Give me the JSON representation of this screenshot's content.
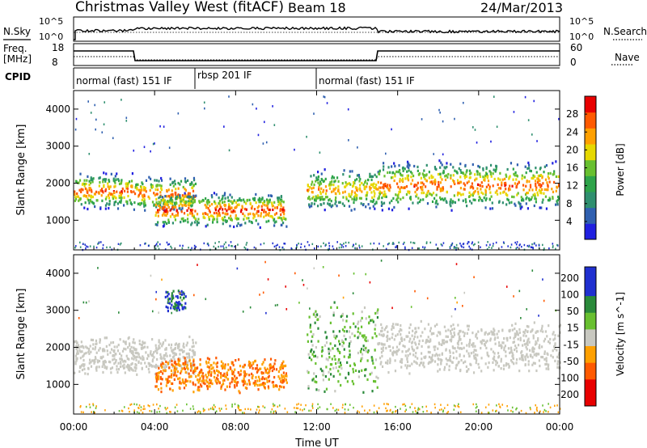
{
  "header": {
    "station": "Christmas Valley West (fitACF)",
    "beam": "Beam 18",
    "date": "24/Mar/2013"
  },
  "top_strips": {
    "nsky_label": "N.Sky",
    "nsearch_label": "N.Search",
    "nsky_ticks": [
      "10^5",
      "10^0"
    ],
    "nsearch_ticks": [
      "10^5",
      "10^0"
    ],
    "freq_label": "Freq.",
    "freq_unit": "[MHz]",
    "freq_ticks": [
      "18",
      "8"
    ],
    "nave_label": "Nave",
    "nave_ticks": [
      "60",
      "0"
    ],
    "cpid_label": "CPID"
  },
  "cpid_segments": [
    {
      "label": "normal (fast) 151 IF",
      "start": 0,
      "end": 6
    },
    {
      "label": "rbsp 201 IF",
      "start": 6,
      "end": 12
    },
    {
      "label": "normal (fast) 151 IF",
      "start": 12,
      "end": 24
    }
  ],
  "chart_data": [
    {
      "type": "heatmap",
      "title": "Power",
      "ylabel": "Slant Range [km]",
      "xlabel": "Time UT",
      "xlim": [
        0,
        24
      ],
      "ylim": [
        200,
        4500
      ],
      "x_ticks": [
        "00:00",
        "04:00",
        "08:00",
        "12:00",
        "16:00",
        "20:00",
        "00:00"
      ],
      "y_ticks": [
        1000,
        2000,
        3000,
        4000
      ],
      "colorbar": {
        "label": "Power [dB]",
        "ticks": [
          4,
          8,
          12,
          16,
          20,
          24,
          28
        ],
        "range": [
          0,
          32
        ]
      },
      "features": [
        {
          "t_start": 0.0,
          "t_end": 2.9,
          "range_low_km": 1350,
          "range_high_km": 2300,
          "peak_db": 28
        },
        {
          "t_start": 2.9,
          "t_end": 6.0,
          "range_low_km": 1300,
          "range_high_km": 2200,
          "peak_db": 28
        },
        {
          "t_start": 4.0,
          "t_end": 10.5,
          "range_low_km": 850,
          "range_high_km": 1750,
          "peak_db": 30
        },
        {
          "t_start": 11.5,
          "t_end": 15.0,
          "range_low_km": 1300,
          "range_high_km": 2400,
          "peak_db": 24
        },
        {
          "t_start": 15.0,
          "t_end": 24.0,
          "range_low_km": 1350,
          "range_high_km": 2600,
          "peak_db": 28
        }
      ]
    },
    {
      "type": "heatmap",
      "title": "Velocity",
      "ylabel": "Slant Range [km]",
      "xlabel": "Time UT",
      "xlim": [
        0,
        24
      ],
      "ylim": [
        200,
        4500
      ],
      "x_ticks": [
        "00:00",
        "04:00",
        "08:00",
        "12:00",
        "16:00",
        "20:00",
        "00:00"
      ],
      "y_ticks": [
        1000,
        2000,
        3000,
        4000
      ],
      "colorbar": {
        "label": "Velocity [m s^-1]",
        "ticks": [
          200,
          100,
          50,
          15,
          -15,
          -50,
          -100,
          -200
        ],
        "range": [
          -250,
          250
        ]
      },
      "features": [
        {
          "t_start": 0.0,
          "t_end": 6.0,
          "range_low_km": 1300,
          "range_high_km": 2300,
          "velocity": 0,
          "note": "ground scatter"
        },
        {
          "t_start": 4.0,
          "t_end": 10.5,
          "range_low_km": 850,
          "range_high_km": 1750,
          "velocity": -60
        },
        {
          "t_start": 4.5,
          "t_end": 5.5,
          "range_low_km": 3000,
          "range_high_km": 3600,
          "velocity": 150
        },
        {
          "t_start": 11.5,
          "t_end": 15.0,
          "range_low_km": 800,
          "range_high_km": 3200,
          "velocity": 40
        },
        {
          "t_start": 15.0,
          "t_end": 24.0,
          "range_low_km": 1350,
          "range_high_km": 2700,
          "velocity": 0,
          "note": "ground scatter"
        }
      ]
    }
  ],
  "colors": {
    "power_scale": [
      "#2020e0",
      "#3060b0",
      "#2f8f6f",
      "#2ea44a",
      "#68c030",
      "#e6d800",
      "#ffa000",
      "#ff5a00",
      "#e80000"
    ],
    "velocity_scale": [
      "#e80000",
      "#ff5a00",
      "#ffa000",
      "#c8c8c0",
      "#68c030",
      "#2a8a3a",
      "#2030d0"
    ],
    "ground_scatter": "#c8c8c0"
  }
}
